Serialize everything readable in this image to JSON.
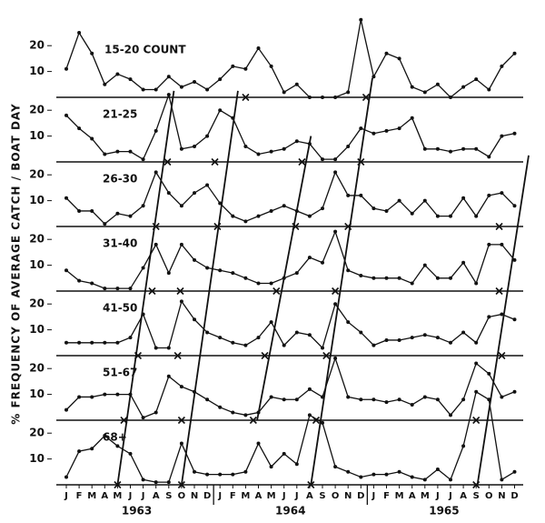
{
  "chart_data": {
    "type": "line",
    "y_label": "% FREQUENCY OF AVERAGE CATCH / BOAT DAY",
    "categories": [
      "J",
      "F",
      "M",
      "A",
      "M",
      "J",
      "J",
      "A",
      "S",
      "O",
      "N",
      "D",
      "J",
      "F",
      "M",
      "A",
      "M",
      "J",
      "J",
      "A",
      "S",
      "O",
      "N",
      "D",
      "J",
      "F",
      "M",
      "A",
      "M",
      "J",
      "J",
      "A",
      "S",
      "O",
      "N",
      "D"
    ],
    "years": [
      "1963",
      "1964",
      "1965"
    ],
    "ylim": [
      0,
      25
    ],
    "yticks": [
      10,
      20
    ],
    "color": "#111111",
    "panels": [
      {
        "name": "15-20 COUNT",
        "values": [
          11,
          25,
          17,
          5,
          9,
          7,
          3,
          3,
          8,
          4,
          6,
          3,
          7,
          12,
          11,
          19,
          12,
          2,
          5,
          0,
          0,
          0,
          2,
          30,
          8,
          17,
          15,
          4,
          2,
          5,
          0,
          4,
          7,
          3,
          12,
          17
        ],
        "crosses": [
          14.0,
          23.4
        ]
      },
      {
        "name": "21-25",
        "values": [
          18,
          13,
          9,
          3,
          4,
          4,
          1,
          12,
          26,
          5,
          6,
          10,
          20,
          17,
          6,
          3,
          4,
          5,
          8,
          7,
          1,
          1,
          6,
          13,
          11,
          12,
          13,
          17,
          5,
          5,
          4,
          5,
          5,
          2,
          10,
          11
        ],
        "crosses": [
          7.9,
          11.6,
          18.4,
          23.0
        ]
      },
      {
        "name": "26-30",
        "values": [
          11,
          6,
          6,
          1,
          5,
          4,
          8,
          21,
          13,
          8,
          13,
          16,
          9,
          4,
          2,
          4,
          6,
          8,
          6,
          4,
          7,
          21,
          12,
          12,
          7,
          6,
          10,
          5,
          10,
          4,
          4,
          11,
          4,
          12,
          13,
          8
        ],
        "crosses": [
          7.0,
          11.8,
          17.9,
          22.0,
          33.8
        ]
      },
      {
        "name": "31-40",
        "values": [
          8,
          4,
          3,
          1,
          1,
          1,
          9,
          18,
          7,
          18,
          12,
          9,
          8,
          7,
          5,
          3,
          3,
          5,
          7,
          13,
          11,
          23,
          8,
          6,
          5,
          5,
          5,
          3,
          10,
          5,
          5,
          11,
          3,
          18,
          18,
          12
        ],
        "crosses": [
          6.7,
          8.9,
          16.4,
          21.0,
          33.8
        ]
      },
      {
        "name": "41-50",
        "values": [
          5,
          5,
          5,
          5,
          5,
          7,
          16,
          3,
          3,
          21,
          14,
          9,
          7,
          5,
          4,
          7,
          13,
          4,
          9,
          8,
          3,
          20,
          13,
          9,
          4,
          6,
          6,
          7,
          8,
          7,
          5,
          9,
          5,
          15,
          16,
          14
        ],
        "crosses": [
          5.6,
          8.7,
          15.5,
          20.3,
          34.0
        ]
      },
      {
        "name": "51-67",
        "values": [
          4,
          9,
          9,
          10,
          10,
          10,
          1,
          3,
          17,
          13,
          11,
          8,
          5,
          3,
          2,
          3,
          9,
          8,
          8,
          12,
          9,
          24,
          9,
          8,
          8,
          7,
          8,
          6,
          9,
          8,
          2,
          8,
          22,
          18,
          9,
          11
        ],
        "crosses": [
          4.5,
          9.0,
          14.6,
          19.5,
          32.0
        ]
      },
      {
        "name": "68+",
        "values": [
          3,
          13,
          14,
          19,
          15,
          12,
          2,
          1,
          1,
          16,
          5,
          4,
          4,
          4,
          5,
          16,
          7,
          12,
          8,
          27,
          24,
          7,
          5,
          3,
          4,
          4,
          5,
          3,
          2,
          6,
          2,
          15,
          36,
          33,
          2,
          5
        ],
        "crosses": [
          4.0,
          9.0,
          19.1,
          32.0
        ]
      }
    ],
    "trend_lines": [
      {
        "x": [
          4.0,
          8.4
        ],
        "y": [
          0,
          6.1
        ]
      },
      {
        "x": [
          9.0,
          13.4
        ],
        "y": [
          0,
          6.1
        ]
      },
      {
        "x": [
          14.9,
          19.1
        ],
        "y": [
          1.0,
          5.4
        ]
      },
      {
        "x": [
          19.1,
          23.9
        ],
        "y": [
          0,
          6.3
        ]
      },
      {
        "x": [
          32.1,
          36.1
        ],
        "y": [
          0,
          5.1
        ]
      }
    ]
  }
}
